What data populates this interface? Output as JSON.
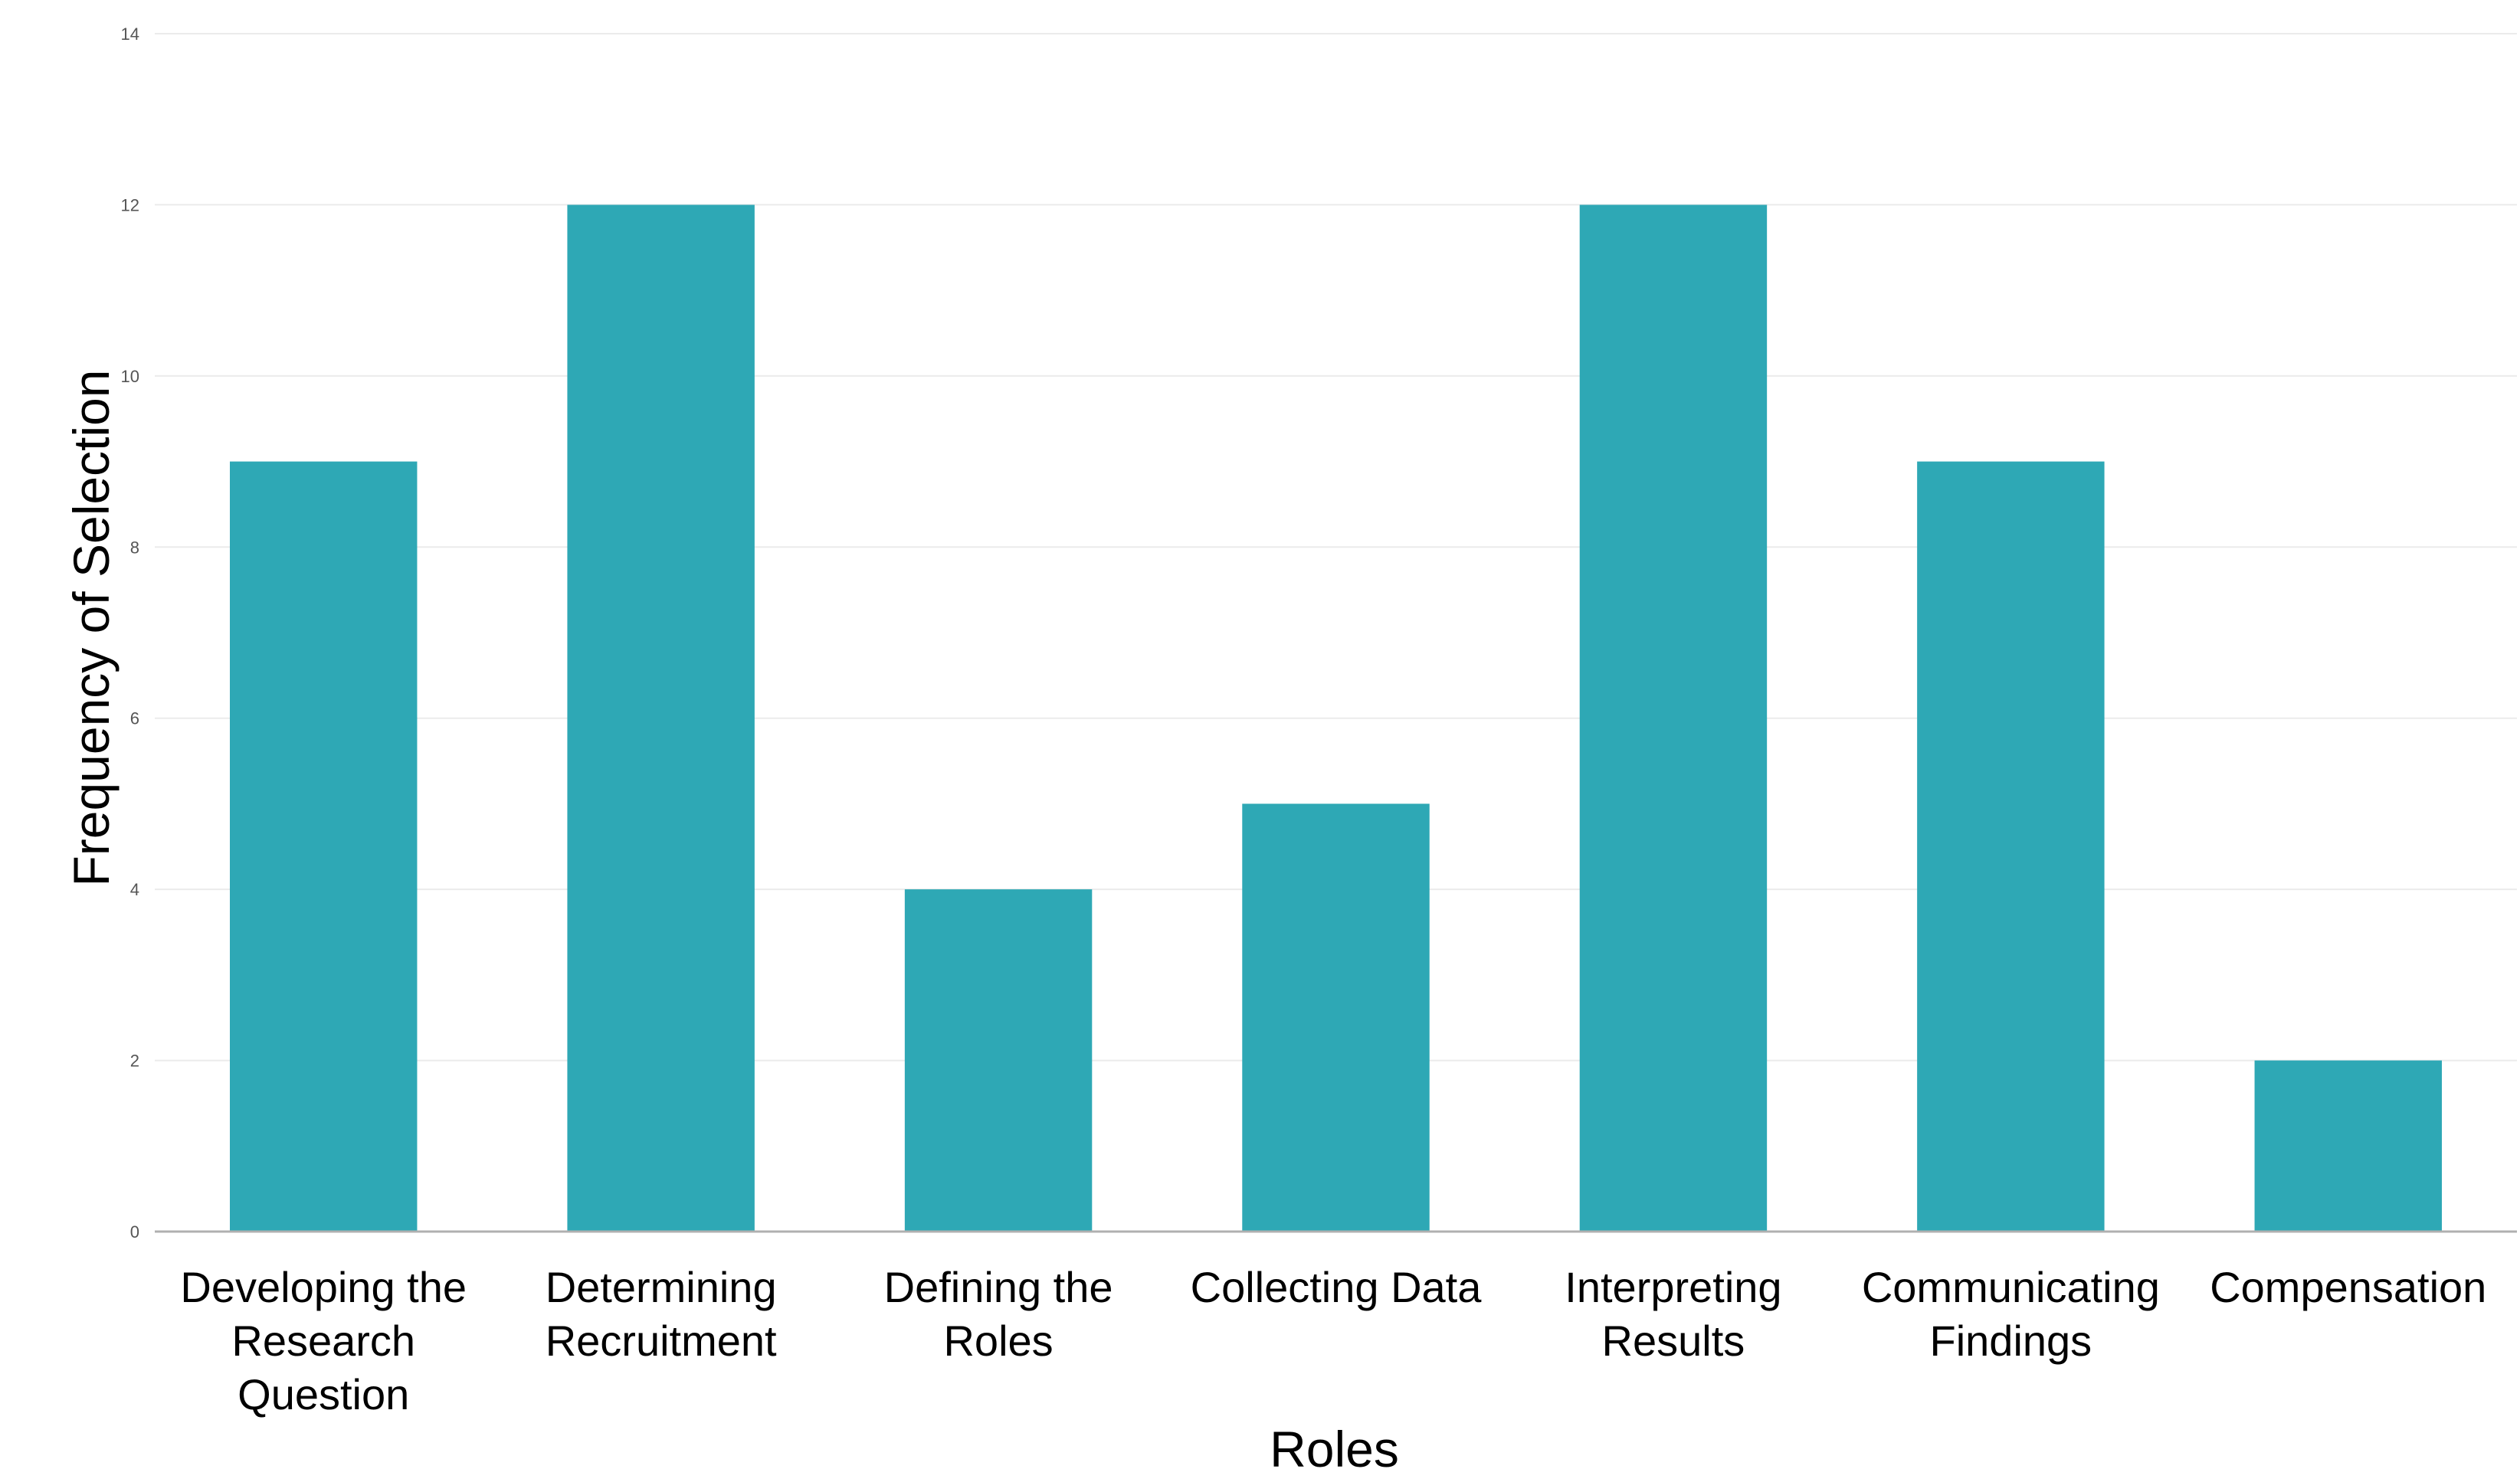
{
  "chart_data": {
    "type": "bar",
    "categories": [
      [
        "Developing the",
        "Research",
        "Question"
      ],
      [
        "Determining",
        "Recruitment"
      ],
      [
        "Defining the",
        "Roles"
      ],
      [
        "Collecting Data"
      ],
      [
        "Interpreting",
        "Results"
      ],
      [
        "Communicating",
        "Findings"
      ],
      [
        "Compensation"
      ]
    ],
    "values": [
      9,
      12,
      4,
      5,
      12,
      9,
      2
    ],
    "title": "",
    "xlabel": "Roles",
    "ylabel": "Frequency of Selection",
    "ylim": [
      0,
      14
    ],
    "yticks": [
      0,
      2,
      4,
      6,
      8,
      10,
      12,
      14
    ],
    "bar_color": "#2ea8b5",
    "grid": "horizontal",
    "legend": "none"
  }
}
